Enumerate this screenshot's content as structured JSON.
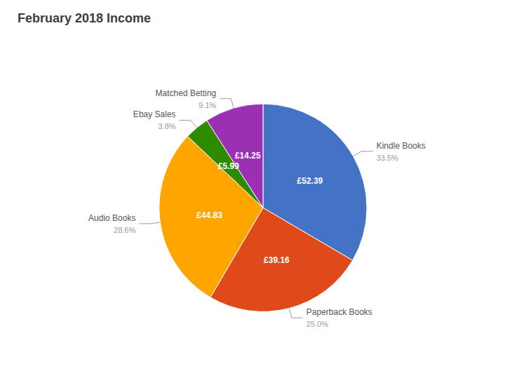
{
  "chart_data": {
    "type": "pie",
    "title": "February 2018 Income",
    "categories": [
      "Kindle Books",
      "Paperback Books",
      "Audio Books",
      "Ebay Sales",
      "Matched Betting"
    ],
    "values": [
      52.39,
      39.16,
      44.83,
      5.99,
      14.25
    ],
    "value_labels": [
      "£52.39",
      "£39.16",
      "£44.83",
      "£5.99",
      "£14.25"
    ],
    "percentages": [
      33.5,
      25.0,
      28.6,
      3.8,
      9.1
    ],
    "percentage_labels": [
      "33.5%",
      "25.0%",
      "28.6%",
      "3.8%",
      "9.1%"
    ],
    "colors": [
      "#4472C4",
      "#E04A1A",
      "#FFA500",
      "#2E8B00",
      "#9B30B5"
    ],
    "data_labels": true
  }
}
